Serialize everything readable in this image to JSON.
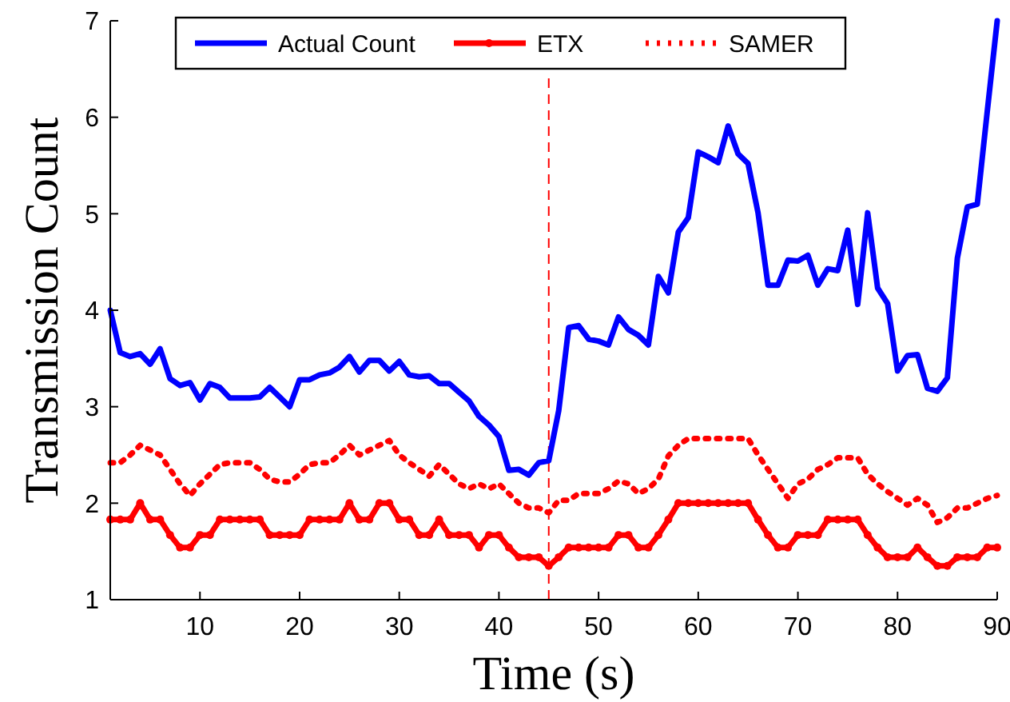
{
  "chart_data": {
    "type": "line",
    "xlabel": "Time (s)",
    "ylabel": "Transmission Count",
    "xlim": [
      1,
      90
    ],
    "ylim": [
      1,
      7
    ],
    "xticks": [
      10,
      20,
      30,
      40,
      50,
      60,
      70,
      80,
      90
    ],
    "yticks": [
      1,
      2,
      3,
      4,
      5,
      6,
      7
    ],
    "grid": false,
    "legend": "top",
    "x": [
      1,
      2,
      3,
      4,
      5,
      6,
      7,
      8,
      9,
      10,
      11,
      12,
      13,
      14,
      15,
      16,
      17,
      18,
      19,
      20,
      21,
      22,
      23,
      24,
      25,
      26,
      27,
      28,
      29,
      30,
      31,
      32,
      33,
      34,
      35,
      36,
      37,
      38,
      39,
      40,
      41,
      42,
      43,
      44,
      45,
      46,
      47,
      48,
      49,
      50,
      51,
      52,
      53,
      54,
      55,
      56,
      57,
      58,
      59,
      60,
      61,
      62,
      63,
      64,
      65,
      66,
      67,
      68,
      69,
      70,
      71,
      72,
      73,
      74,
      75,
      76,
      77,
      78,
      79,
      80,
      81,
      82,
      83,
      84,
      85,
      86,
      87,
      88,
      89,
      90
    ],
    "series": [
      {
        "name": "Actual Count",
        "color": "#0000ff",
        "marker": "none",
        "line_style": "solid",
        "values": [
          4.0,
          3.56,
          3.52,
          3.55,
          3.44,
          3.6,
          3.29,
          3.22,
          3.25,
          3.07,
          3.24,
          3.2,
          3.09,
          3.09,
          3.09,
          3.1,
          3.2,
          3.1,
          3.0,
          3.28,
          3.28,
          3.33,
          3.35,
          3.41,
          3.52,
          3.36,
          3.48,
          3.48,
          3.37,
          3.47,
          3.33,
          3.31,
          3.32,
          3.24,
          3.24,
          3.15,
          3.06,
          2.9,
          2.81,
          2.69,
          2.34,
          2.35,
          2.29,
          2.42,
          2.44,
          2.96,
          3.82,
          3.84,
          3.7,
          3.68,
          3.64,
          3.93,
          3.8,
          3.74,
          3.64,
          4.35,
          4.18,
          4.81,
          4.96,
          5.64,
          5.59,
          5.53,
          5.91,
          5.62,
          5.52,
          5.01,
          4.26,
          4.26,
          4.52,
          4.51,
          4.57,
          4.26,
          4.43,
          4.41,
          4.83,
          4.06,
          5.01,
          4.23,
          4.07,
          3.37,
          3.53,
          3.54,
          3.19,
          3.16,
          3.3,
          4.54,
          5.07,
          5.1,
          6.06,
          7.0
        ]
      },
      {
        "name": "ETX",
        "color": "#ff0000",
        "marker": "circle",
        "line_style": "solid",
        "values": [
          1.83,
          1.83,
          1.83,
          2.0,
          1.83,
          1.83,
          1.67,
          1.54,
          1.54,
          1.67,
          1.67,
          1.83,
          1.83,
          1.83,
          1.83,
          1.83,
          1.67,
          1.67,
          1.67,
          1.67,
          1.83,
          1.83,
          1.83,
          1.83,
          2.0,
          1.83,
          1.83,
          2.0,
          2.0,
          1.83,
          1.83,
          1.67,
          1.67,
          1.83,
          1.67,
          1.67,
          1.67,
          1.54,
          1.67,
          1.67,
          1.54,
          1.44,
          1.44,
          1.44,
          1.35,
          1.44,
          1.54,
          1.54,
          1.54,
          1.54,
          1.54,
          1.67,
          1.67,
          1.54,
          1.54,
          1.67,
          1.83,
          2.0,
          2.0,
          2.0,
          2.0,
          2.0,
          2.0,
          2.0,
          2.0,
          1.83,
          1.67,
          1.54,
          1.54,
          1.67,
          1.67,
          1.67,
          1.83,
          1.83,
          1.83,
          1.83,
          1.67,
          1.54,
          1.44,
          1.44,
          1.44,
          1.54,
          1.44,
          1.35,
          1.35,
          1.44,
          1.44,
          1.44,
          1.54,
          1.54
        ]
      },
      {
        "name": "SAMER",
        "color": "#ff0000",
        "marker": "none",
        "line_style": "dotted",
        "values": [
          2.42,
          2.42,
          2.5,
          2.6,
          2.55,
          2.5,
          2.35,
          2.2,
          2.08,
          2.2,
          2.3,
          2.4,
          2.42,
          2.42,
          2.42,
          2.35,
          2.25,
          2.22,
          2.22,
          2.3,
          2.4,
          2.42,
          2.42,
          2.5,
          2.6,
          2.5,
          2.55,
          2.6,
          2.65,
          2.5,
          2.42,
          2.35,
          2.28,
          2.4,
          2.3,
          2.2,
          2.15,
          2.2,
          2.15,
          2.2,
          2.1,
          2.0,
          1.95,
          1.95,
          1.9,
          2.03,
          2.03,
          2.1,
          2.1,
          2.1,
          2.15,
          2.23,
          2.2,
          2.1,
          2.15,
          2.25,
          2.49,
          2.6,
          2.67,
          2.67,
          2.67,
          2.67,
          2.67,
          2.67,
          2.67,
          2.5,
          2.35,
          2.2,
          2.05,
          2.2,
          2.25,
          2.35,
          2.4,
          2.47,
          2.47,
          2.47,
          2.3,
          2.2,
          2.12,
          2.05,
          1.98,
          2.05,
          1.98,
          1.8,
          1.85,
          1.95,
          1.95,
          2.0,
          2.05,
          2.08
        ]
      }
    ],
    "ref_lines": [
      {
        "axis": "x",
        "value": 45,
        "color": "#ff0000",
        "line_style": "dashed"
      }
    ]
  }
}
